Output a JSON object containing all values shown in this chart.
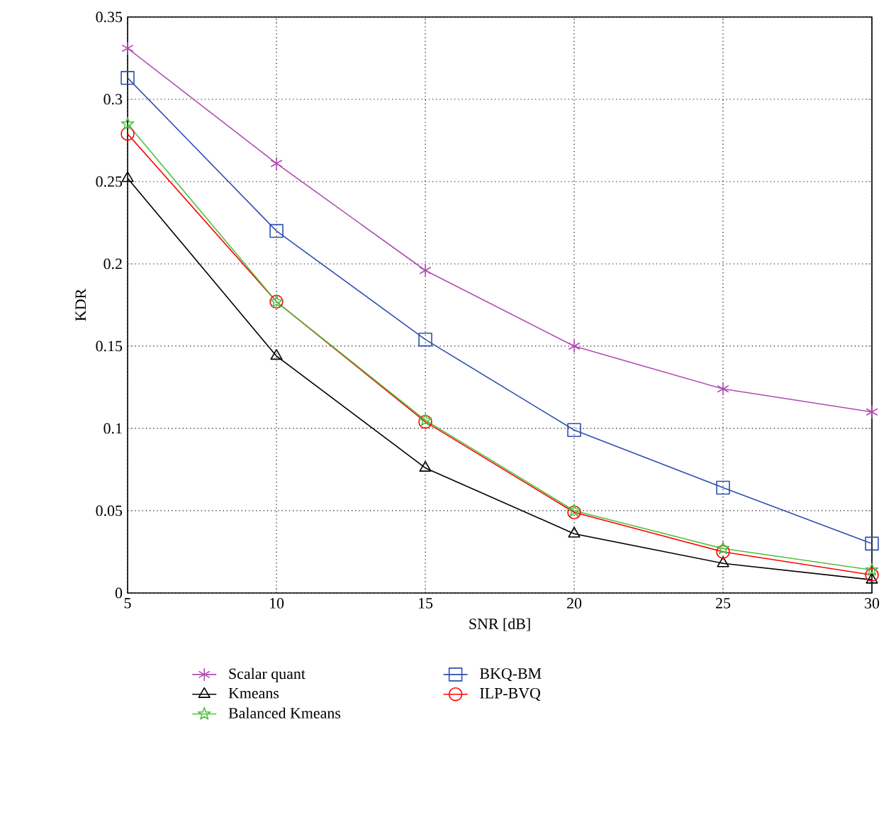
{
  "chart_data": {
    "type": "line",
    "xlabel": "SNR [dB]",
    "ylabel": "KDR",
    "x": [
      5,
      10,
      15,
      20,
      25,
      30
    ],
    "xlim": [
      5,
      30
    ],
    "xticks": [
      5,
      10,
      15,
      20,
      25,
      30
    ],
    "ylim": [
      0,
      0.35
    ],
    "yticks": [
      0,
      0.05,
      0.1,
      0.15,
      0.2,
      0.25,
      0.3,
      0.35
    ],
    "grid": true,
    "legend": "bottom",
    "line_style": "solid",
    "series": [
      {
        "name": "Scalar quant",
        "color": "#b04cb0",
        "marker": "cross",
        "values": [
          0.331,
          0.261,
          0.196,
          0.15,
          0.124,
          0.11
        ]
      },
      {
        "name": "BKQ-BM",
        "color": "#2f4fb0",
        "marker": "square",
        "values": [
          0.313,
          0.22,
          0.154,
          0.099,
          0.064,
          0.03
        ]
      },
      {
        "name": "Kmeans",
        "color": "#000000",
        "marker": "triangle",
        "values": [
          0.252,
          0.144,
          0.076,
          0.036,
          0.018,
          0.008
        ]
      },
      {
        "name": "ILP-BVQ",
        "color": "#ff0000",
        "marker": "circle",
        "values": [
          0.279,
          0.177,
          0.104,
          0.049,
          0.025,
          0.011
        ]
      },
      {
        "name": "Balanced Kmeans",
        "color": "#4fc040",
        "marker": "star",
        "values": [
          0.285,
          0.177,
          0.105,
          0.05,
          0.027,
          0.014
        ]
      }
    ]
  }
}
